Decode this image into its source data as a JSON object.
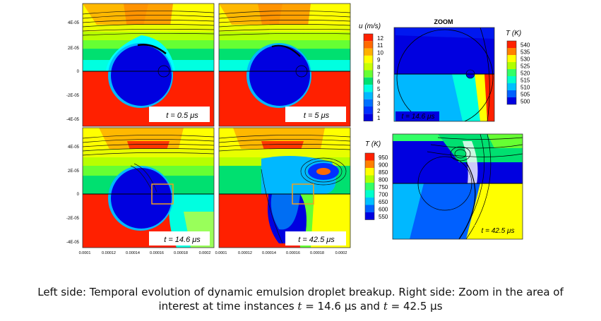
{
  "figure": {
    "panels": [
      {
        "time_label": "t = 0.5 μs"
      },
      {
        "time_label": "t = 5 μs"
      },
      {
        "time_label": "t = 14.6 μs"
      },
      {
        "time_label": "t = 42.5 μs"
      }
    ],
    "y_ticks": [
      "4E-05",
      "2E-05",
      "0",
      "-2E-05",
      "-4E-05"
    ],
    "x_ticks_left": [
      "0.0001",
      "0.00012",
      "0.00014",
      "0.00016",
      "0.00018",
      "0.0002"
    ],
    "x_ticks_right": [
      "0.0001",
      "0.00012",
      "0.00014",
      "0.00016",
      "0.00018",
      "0.0002"
    ],
    "velocity_legend": {
      "title": "u (m/s)",
      "labels": [
        "12",
        "11",
        "10",
        "9",
        "8",
        "7",
        "6",
        "5",
        "4",
        "3",
        "2",
        "1"
      ],
      "colors": [
        "#ff2000",
        "#ff6a00",
        "#ffb000",
        "#ffff00",
        "#c8ff00",
        "#66ff33",
        "#00e070",
        "#00ffe0",
        "#00b8ff",
        "#0070ff",
        "#0030ff",
        "#0000e0"
      ]
    },
    "zoom_title": "ZOOM",
    "zoom_top": {
      "time_label": "t = 14.6 μs",
      "legend_title": "T (K)",
      "labels": [
        "540",
        "535",
        "530",
        "525",
        "520",
        "515",
        "510",
        "505",
        "500"
      ],
      "colors": [
        "#ff2000",
        "#ff8000",
        "#ffff00",
        "#b0ff00",
        "#33ff66",
        "#00ffcc",
        "#00c0ff",
        "#0060ff",
        "#0000e0"
      ]
    },
    "zoom_bottom": {
      "time_label": "t = 42.5 μs",
      "legend_title": "T (K)",
      "labels": [
        "950",
        "900",
        "850",
        "800",
        "750",
        "700",
        "650",
        "600",
        "550"
      ],
      "colors": [
        "#ff2000",
        "#ff8000",
        "#ffff00",
        "#b0ff00",
        "#33ff66",
        "#00ffcc",
        "#00c0ff",
        "#0060ff",
        "#0000e0"
      ]
    }
  },
  "caption": {
    "line1": "Left side: Temporal evolution of dynamic emulsion droplet breakup. Right side: Zoom in the area of",
    "line2_prefix": "interest at time instances ",
    "t1_var": "t",
    "t1_value": " = 14.6 μs and ",
    "t2_var": "t",
    "t2_value": " = 42.5 μs"
  }
}
